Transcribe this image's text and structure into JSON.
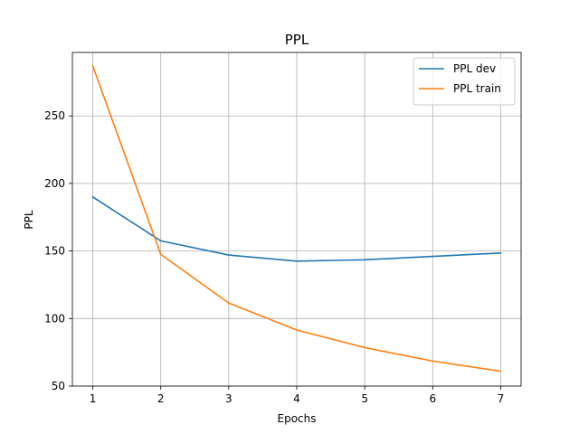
{
  "chart_data": {
    "type": "line",
    "title": "PPL",
    "xlabel": "Epochs",
    "ylabel": "PPL",
    "x": [
      1,
      2,
      3,
      4,
      5,
      6,
      7
    ],
    "xlim": [
      0.7,
      7.3
    ],
    "ylim": [
      50,
      297
    ],
    "xticks": [
      1,
      2,
      3,
      4,
      5,
      6,
      7
    ],
    "yticks": [
      50,
      100,
      150,
      200,
      250
    ],
    "grid": true,
    "legend_position": "top-right",
    "series": [
      {
        "name": "PPL dev",
        "color": "#1f77b4",
        "values": [
          190,
          157.5,
          147,
          142.5,
          143.5,
          146,
          148.5
        ]
      },
      {
        "name": "PPL train",
        "color": "#ff7f0e",
        "values": [
          287,
          147.5,
          111.5,
          91.5,
          78.5,
          68.5,
          61
        ]
      }
    ]
  }
}
